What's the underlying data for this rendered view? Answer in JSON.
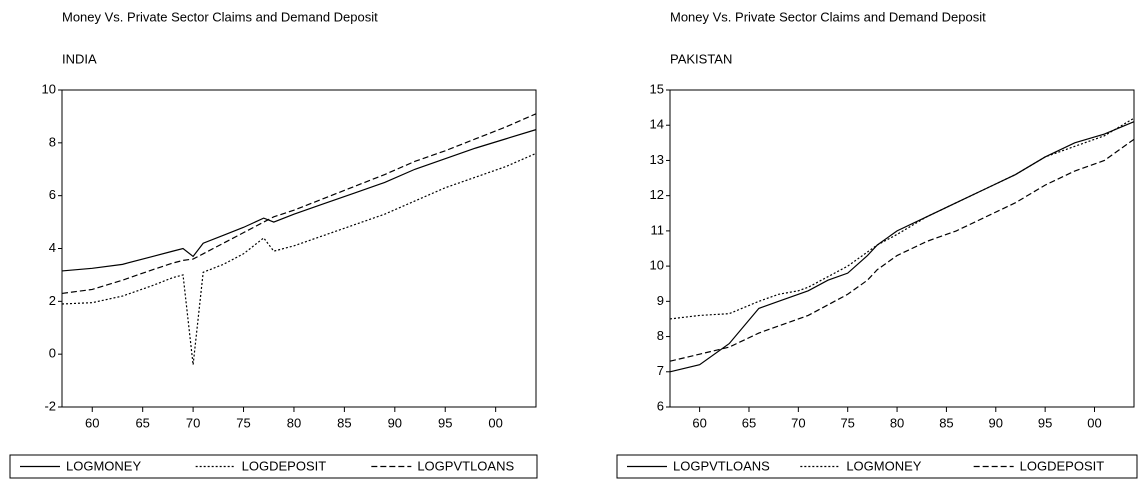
{
  "chart_data": [
    {
      "type": "line",
      "title": "Money Vs. Private Sector Claims and Demand Deposit",
      "subtitle": "INDIA",
      "x": [
        1957,
        1960,
        1963,
        1966,
        1968,
        1969,
        1970,
        1971,
        1973,
        1975,
        1977,
        1978,
        1980,
        1983,
        1986,
        1989,
        1992,
        1995,
        1998,
        2001,
        2004
      ],
      "series": [
        {
          "name": "LOGMONEY",
          "color": "#000000",
          "style": "solid",
          "values": [
            3.15,
            3.25,
            3.4,
            3.7,
            3.9,
            4.0,
            3.7,
            4.2,
            4.5,
            4.8,
            5.15,
            5.0,
            5.3,
            5.7,
            6.1,
            6.5,
            7.0,
            7.4,
            7.8,
            8.15,
            8.5
          ]
        },
        {
          "name": "LOGDEPOSIT",
          "color": "#000000",
          "style": "dotted",
          "values": [
            1.9,
            1.95,
            2.2,
            2.6,
            2.9,
            3.0,
            -0.4,
            3.1,
            3.4,
            3.8,
            4.4,
            3.9,
            4.1,
            4.5,
            4.9,
            5.3,
            5.8,
            6.3,
            6.7,
            7.1,
            7.6
          ]
        },
        {
          "name": "LOGPVTLOANS",
          "color": "#000000",
          "style": "dashed",
          "values": [
            2.3,
            2.45,
            2.8,
            3.2,
            3.45,
            3.55,
            3.6,
            3.8,
            4.2,
            4.6,
            5.0,
            5.2,
            5.45,
            5.9,
            6.35,
            6.8,
            7.3,
            7.7,
            8.15,
            8.6,
            9.1
          ]
        }
      ],
      "xlim": [
        1957,
        2004
      ],
      "xticks": [
        {
          "value": 1960,
          "label": "60"
        },
        {
          "value": 1965,
          "label": "65"
        },
        {
          "value": 1970,
          "label": "70"
        },
        {
          "value": 1975,
          "label": "75"
        },
        {
          "value": 1980,
          "label": "80"
        },
        {
          "value": 1985,
          "label": "85"
        },
        {
          "value": 1990,
          "label": "90"
        },
        {
          "value": 1995,
          "label": "95"
        },
        {
          "value": 2000,
          "label": "00"
        }
      ],
      "ylim": [
        -2,
        10
      ],
      "yticks": [
        -2,
        0,
        2,
        4,
        6,
        8,
        10
      ],
      "legend": "bottom"
    },
    {
      "type": "line",
      "title": "Money Vs. Private Sector Claims and Demand Deposit",
      "subtitle": "PAKISTAN",
      "x": [
        1957,
        1960,
        1963,
        1966,
        1968,
        1969,
        1970,
        1971,
        1973,
        1975,
        1977,
        1978,
        1980,
        1983,
        1986,
        1989,
        1992,
        1995,
        1998,
        2001,
        2004
      ],
      "series": [
        {
          "name": "LOGPVTLOANS",
          "color": "#000000",
          "style": "solid",
          "values": [
            7.0,
            7.2,
            7.8,
            8.8,
            9.0,
            9.1,
            9.2,
            9.3,
            9.6,
            9.8,
            10.3,
            10.6,
            11.0,
            11.4,
            11.8,
            12.2,
            12.6,
            13.1,
            13.5,
            13.75,
            14.1
          ]
        },
        {
          "name": "LOGMONEY",
          "color": "#000000",
          "style": "dotted",
          "values": [
            8.5,
            8.6,
            8.65,
            9.0,
            9.2,
            9.25,
            9.3,
            9.4,
            9.7,
            10.0,
            10.4,
            10.6,
            10.9,
            11.4,
            11.8,
            12.2,
            12.6,
            13.1,
            13.4,
            13.7,
            14.2
          ]
        },
        {
          "name": "LOGDEPOSIT",
          "color": "#000000",
          "style": "dashed",
          "values": [
            7.3,
            7.5,
            7.7,
            8.1,
            8.3,
            8.4,
            8.5,
            8.6,
            8.9,
            9.2,
            9.6,
            9.9,
            10.3,
            10.7,
            11.0,
            11.4,
            11.8,
            12.3,
            12.7,
            13.0,
            13.6
          ]
        }
      ],
      "xlim": [
        1957,
        2004
      ],
      "xticks": [
        {
          "value": 1960,
          "label": "60"
        },
        {
          "value": 1965,
          "label": "65"
        },
        {
          "value": 1970,
          "label": "70"
        },
        {
          "value": 1975,
          "label": "75"
        },
        {
          "value": 1980,
          "label": "80"
        },
        {
          "value": 1985,
          "label": "85"
        },
        {
          "value": 1990,
          "label": "90"
        },
        {
          "value": 1995,
          "label": "95"
        },
        {
          "value": 2000,
          "label": "00"
        }
      ],
      "ylim": [
        6,
        15
      ],
      "yticks": [
        6,
        7,
        8,
        9,
        10,
        11,
        12,
        13,
        14,
        15
      ],
      "legend": "bottom"
    }
  ]
}
